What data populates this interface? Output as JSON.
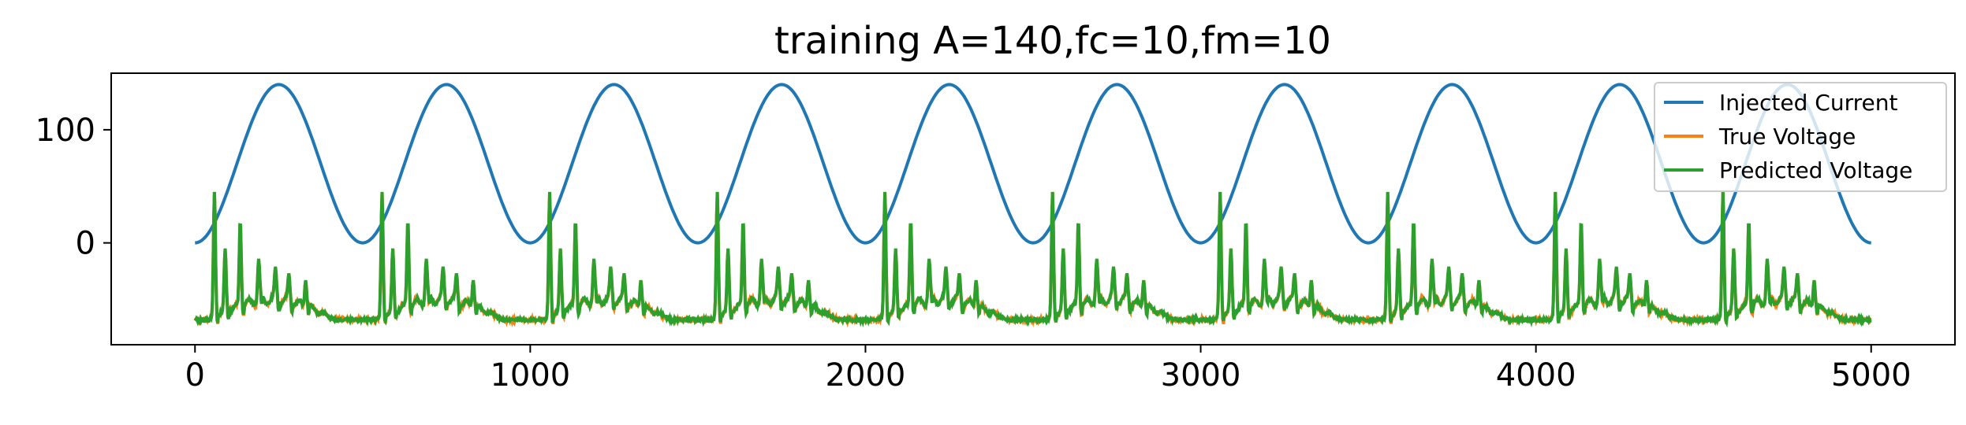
{
  "chart_data": {
    "type": "line",
    "title": "training A=140,fc=10,fm=10",
    "xlabel": "",
    "ylabel": "",
    "xlim": [
      -250,
      5250
    ],
    "ylim": [
      -90,
      150
    ],
    "xticks": [
      0,
      1000,
      2000,
      3000,
      4000,
      5000
    ],
    "xtick_labels": [
      "0",
      "1000",
      "2000",
      "3000",
      "4000",
      "5000"
    ],
    "yticks": [
      0,
      100
    ],
    "ytick_labels": [
      "0",
      "100"
    ],
    "grid": false,
    "legend_position": "top-right",
    "series": [
      {
        "name": "Injected Current",
        "color": "#1f77b4",
        "kind": "sinusoid",
        "amplitude": 140,
        "period": 500,
        "x_range": [
          0,
          5000
        ],
        "formula": "70*(1-cos(2*pi*x/500))",
        "min": 0,
        "max": 140,
        "peaks_at": [
          250,
          750,
          1250,
          1750,
          2250,
          2750,
          3250,
          3750,
          4250,
          4750
        ]
      },
      {
        "name": "True Voltage",
        "color": "#ff7f0e",
        "kind": "burst",
        "period": 500,
        "x_range": [
          0,
          5000
        ],
        "baseline": -68,
        "spike_offsets": [
          58,
          90,
          135,
          190,
          240,
          280,
          330
        ],
        "spike_peaks": [
          45,
          -5,
          18,
          -15,
          -22,
          -27,
          -33
        ],
        "range": [
          -72,
          45
        ]
      },
      {
        "name": "Predicted Voltage",
        "color": "#2ca02c",
        "kind": "burst",
        "period": 500,
        "x_range": [
          0,
          5000
        ],
        "baseline": -68,
        "spike_offsets": [
          58,
          90,
          135,
          190,
          240,
          280,
          330
        ],
        "spike_peaks": [
          45,
          -5,
          20,
          -14,
          -21,
          -27,
          -33
        ],
        "range": [
          -78,
          47
        ]
      }
    ]
  }
}
